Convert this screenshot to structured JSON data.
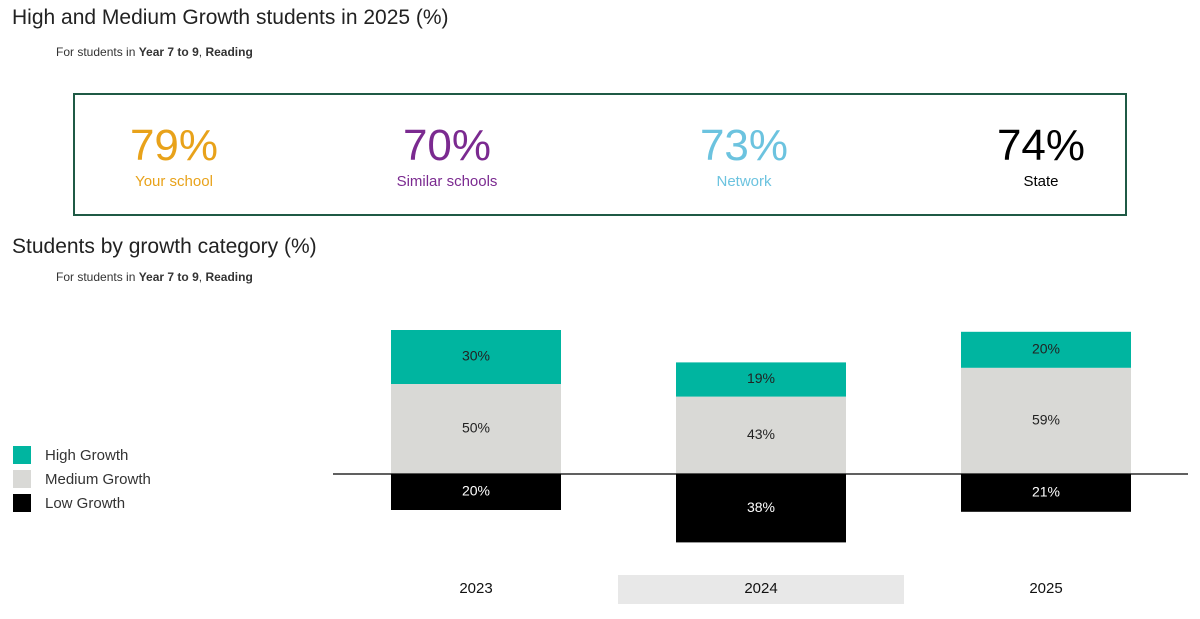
{
  "header": {
    "title": "High and Medium Growth students in 2025 (%)",
    "subtitle_prefix": "For students in ",
    "subtitle_years": "Year 7 to 9",
    "subtitle_sep": ", ",
    "subtitle_subject": "Reading"
  },
  "summary": {
    "items": [
      {
        "value": "79%",
        "label": "Your school",
        "color": "#e8a21a"
      },
      {
        "value": "70%",
        "label": "Similar schools",
        "color": "#7b2a90"
      },
      {
        "value": "73%",
        "label": "Network",
        "color": "#6cc3df"
      },
      {
        "value": "74%",
        "label": "State",
        "color": "#000000"
      }
    ],
    "border_color": "#1f5a45"
  },
  "chart_section": {
    "title": "Students by growth category (%)",
    "subtitle_prefix": "For students in ",
    "subtitle_years": "Year 7 to 9",
    "subtitle_sep": ", ",
    "subtitle_subject": "Reading"
  },
  "chart_data": {
    "type": "bar",
    "stacked": "diverging",
    "categories": [
      "2023",
      "2024",
      "2025"
    ],
    "highlighted_category": "2024",
    "series": [
      {
        "name": "High Growth",
        "values": [
          30,
          19,
          20
        ],
        "color": "#00b5a0",
        "direction": "up"
      },
      {
        "name": "Medium Growth",
        "values": [
          50,
          43,
          59
        ],
        "color": "#d9d9d6",
        "direction": "up"
      },
      {
        "name": "Low Growth",
        "values": [
          20,
          38,
          21
        ],
        "color": "#000000",
        "direction": "down"
      }
    ],
    "value_labels": {
      "High Growth": [
        "30%",
        "19%",
        "20%"
      ],
      "Medium Growth": [
        "50%",
        "43%",
        "59%"
      ],
      "Low Growth": [
        "20%",
        "38%",
        "21%"
      ]
    },
    "legend_position": "left",
    "grid": false
  }
}
